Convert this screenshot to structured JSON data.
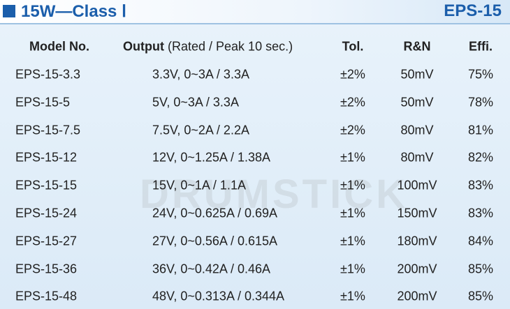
{
  "header": {
    "title": "15W—Class Ⅰ",
    "code": "EPS-15"
  },
  "watermark": "DRUMSTICK",
  "table": {
    "header": [
      "Model No.",
      "Output",
      "Tol.",
      "R&N",
      "Effi."
    ],
    "header_note": "(Rated / Peak 10 sec.)",
    "rows": [
      [
        "EPS-15-3.3",
        "3.3V, 0~3A / 3.3A",
        "±2%",
        "50mV",
        "75%"
      ],
      [
        "EPS-15-5",
        "5V, 0~3A / 3.3A",
        "±2%",
        "50mV",
        "78%"
      ],
      [
        "EPS-15-7.5",
        "7.5V, 0~2A / 2.2A",
        "±2%",
        "80mV",
        "81%"
      ],
      [
        "EPS-15-12",
        "12V, 0~1.25A / 1.38A",
        "±1%",
        "80mV",
        "82%"
      ],
      [
        "EPS-15-15",
        "15V, 0~1A / 1.1A",
        "±1%",
        "100mV",
        "83%"
      ],
      [
        "EPS-15-24",
        "24V, 0~0.625A / 0.69A",
        "±1%",
        "150mV",
        "83%"
      ],
      [
        "EPS-15-27",
        "27V, 0~0.56A / 0.615A",
        "±1%",
        "180mV",
        "84%"
      ],
      [
        "EPS-15-36",
        "36V, 0~0.42A / 0.46A",
        "±1%",
        "200mV",
        "85%"
      ],
      [
        "EPS-15-48",
        "48V, 0~0.313A / 0.344A",
        "±1%",
        "200mV",
        "85%"
      ]
    ]
  }
}
